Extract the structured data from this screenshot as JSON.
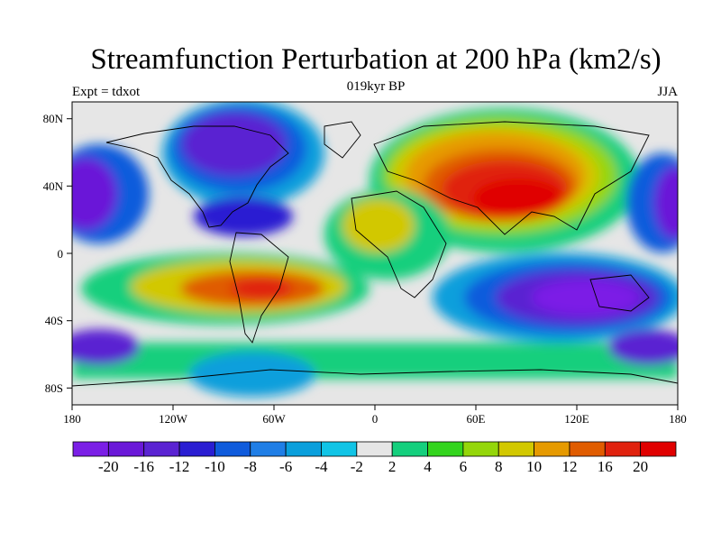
{
  "title": "Streamfunction Perturbation at 200 hPa (km2/s)",
  "subtitle_left": "Expt = tdxot",
  "subtitle_center": "019kyr BP",
  "subtitle_right": "JJA",
  "axes": {
    "lat_ticks": [
      "80N",
      "40N",
      "0",
      "40S",
      "80S"
    ],
    "lon_ticks": [
      "180",
      "120W",
      "60W",
      "0",
      "60E",
      "120E",
      "180"
    ]
  },
  "colorbar": {
    "labels": [
      "-20",
      "-16",
      "-12",
      "-10",
      "-8",
      "-6",
      "-4",
      "-2",
      "2",
      "4",
      "6",
      "8",
      "10",
      "12",
      "16",
      "20"
    ],
    "colors": [
      "#7b1fe6",
      "#6a18d8",
      "#5a23d2",
      "#2a1ed2",
      "#0f5bdc",
      "#1f7ee6",
      "#0a9fdc",
      "#11c4e6",
      "#e6e6e6",
      "#14cf7d",
      "#33d41e",
      "#94d60a",
      "#d2c800",
      "#e69a00",
      "#e05c00",
      "#e0220e",
      "#e00000"
    ]
  },
  "chart_data": {
    "type": "heatmap",
    "title": "Streamfunction Perturbation at 200 hPa (km2/s)",
    "xlim": [
      -180,
      180
    ],
    "ylim": [
      -90,
      90
    ],
    "levels": [
      -20,
      -16,
      -12,
      -10,
      -8,
      -6,
      -4,
      -2,
      2,
      4,
      6,
      8,
      10,
      12,
      16,
      20
    ],
    "features": [
      {
        "lon": 75,
        "lat": 40,
        "value": 22
      },
      {
        "lon": 40,
        "lat": 60,
        "value": 18
      },
      {
        "lon": -75,
        "lat": -20,
        "value": 14
      },
      {
        "lon": -105,
        "lat": 60,
        "value": -16
      },
      {
        "lon": -70,
        "lat": 20,
        "value": -10
      },
      {
        "lon": -170,
        "lat": 40,
        "value": -14
      },
      {
        "lon": 170,
        "lat": 40,
        "value": -14
      },
      {
        "lon": 110,
        "lat": -30,
        "value": -18
      },
      {
        "lon": -170,
        "lat": -55,
        "value": -14
      },
      {
        "lon": 170,
        "lat": -55,
        "value": -14
      },
      {
        "lon": -70,
        "lat": -70,
        "value": -6
      }
    ]
  }
}
